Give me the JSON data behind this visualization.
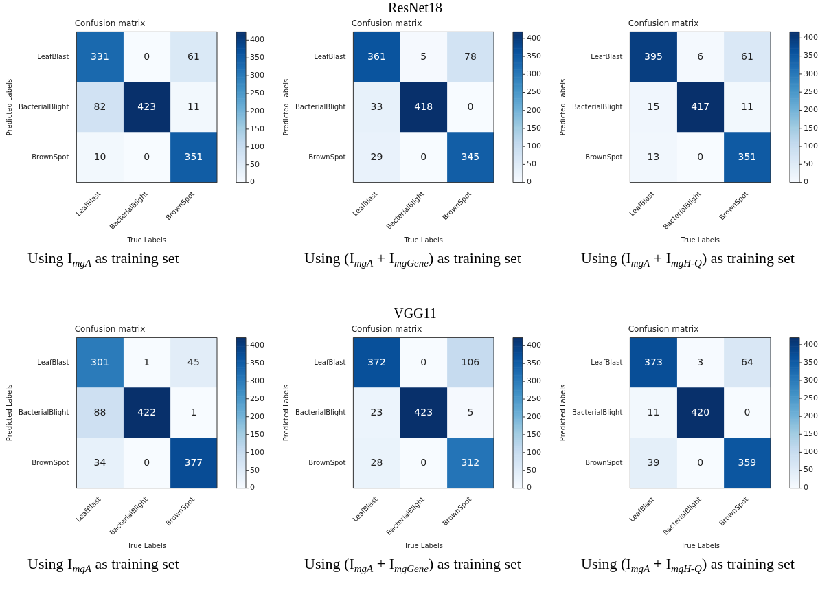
{
  "chart_data": [
    {
      "type": "heatmap",
      "title": "Confusion matrix",
      "xlabel": "True Labels",
      "ylabel": "Predicted Labels",
      "clim": [
        0,
        423
      ],
      "cticks": [
        0,
        50,
        100,
        150,
        200,
        250,
        300,
        350,
        400
      ],
      "data_labels": true,
      "categories": [
        "LeafBlast",
        "BacterialBlight",
        "BrownSpot"
      ],
      "y_categories": [
        "LeafBlast",
        "BacterialBlight",
        "BrownSpot"
      ],
      "cells": [
        [
          331,
          0,
          61
        ],
        [
          82,
          423,
          11
        ],
        [
          10,
          0,
          351
        ]
      ],
      "annotations": [
        "Using I$_{mgA}$ as training set"
      ]
    },
    {
      "type": "heatmap",
      "title": "Confusion matrix",
      "subtitle": "ResNet18",
      "xlabel": "True Labels",
      "ylabel": "Predicted Labels",
      "clim": [
        0,
        418
      ],
      "cticks": [
        0,
        50,
        100,
        150,
        200,
        250,
        300,
        350,
        400
      ],
      "data_labels": true,
      "categories": [
        "LeafBlast",
        "BacterialBlight",
        "BrownSpot"
      ],
      "y_categories": [
        "LeafBlast",
        "BacterialBlight",
        "BrownSpot"
      ],
      "cells": [
        [
          361,
          5,
          78
        ],
        [
          33,
          418,
          0
        ],
        [
          29,
          0,
          345
        ]
      ],
      "annotations": [
        "Using (I$_{mgA}$ + I$_{mgGene}$) as training set"
      ]
    },
    {
      "type": "heatmap",
      "title": "Confusion matrix",
      "xlabel": "True Labels",
      "ylabel": "Predicted Labels",
      "clim": [
        0,
        417
      ],
      "cticks": [
        0,
        50,
        100,
        150,
        200,
        250,
        300,
        350,
        400
      ],
      "data_labels": true,
      "categories": [
        "LeafBlast",
        "BacterialBlight",
        "BrownSpot"
      ],
      "y_categories": [
        "LeafBlast",
        "BacterialBlight",
        "BrownSpot"
      ],
      "cells": [
        [
          395,
          6,
          61
        ],
        [
          15,
          417,
          11
        ],
        [
          13,
          0,
          351
        ]
      ],
      "annotations": [
        "Using (I$_{mgA}$ + I$_{mgH-Q}$) as training set"
      ]
    },
    {
      "type": "heatmap",
      "title": "Confusion matrix",
      "xlabel": "True Labels",
      "ylabel": "Predicted Labels",
      "clim": [
        0,
        422
      ],
      "cticks": [
        0,
        50,
        100,
        150,
        200,
        250,
        300,
        350,
        400
      ],
      "data_labels": true,
      "categories": [
        "LeafBlast",
        "BacterialBlight",
        "BrownSpot"
      ],
      "y_categories": [
        "LeafBlast",
        "BacterialBlight",
        "BrownSpot"
      ],
      "cells": [
        [
          301,
          1,
          45
        ],
        [
          88,
          422,
          1
        ],
        [
          34,
          0,
          377
        ]
      ],
      "annotations": [
        "Using I$_{mgA}$ as training set"
      ]
    },
    {
      "type": "heatmap",
      "title": "Confusion matrix",
      "subtitle": "VGG11",
      "xlabel": "True Labels",
      "ylabel": "Predicted Labels",
      "clim": [
        0,
        423
      ],
      "cticks": [
        0,
        50,
        100,
        150,
        200,
        250,
        300,
        350,
        400
      ],
      "data_labels": true,
      "categories": [
        "LeafBlast",
        "BacterialBlight",
        "BrownSpot"
      ],
      "y_categories": [
        "LeafBlast",
        "BacterialBlight",
        "BrownSpot"
      ],
      "cells": [
        [
          372,
          0,
          106
        ],
        [
          23,
          423,
          5
        ],
        [
          28,
          0,
          312
        ]
      ],
      "annotations": [
        "Using (I$_{mgA}$ + I$_{mgGene}$) as training set"
      ]
    },
    {
      "type": "heatmap",
      "title": "Confusion matrix",
      "xlabel": "True Labels",
      "ylabel": "Predicted Labels",
      "clim": [
        0,
        420
      ],
      "cticks": [
        0,
        50,
        100,
        150,
        200,
        250,
        300,
        350,
        400
      ],
      "data_labels": true,
      "categories": [
        "LeafBlast",
        "BacterialBlight",
        "BrownSpot"
      ],
      "y_categories": [
        "LeafBlast",
        "BacterialBlight",
        "BrownSpot"
      ],
      "cells": [
        [
          373,
          3,
          64
        ],
        [
          11,
          420,
          0
        ],
        [
          39,
          0,
          359
        ]
      ],
      "annotations": [
        "Using (I$_{mgA}$ + I$_{mgH-Q}$) as training set"
      ]
    }
  ]
}
